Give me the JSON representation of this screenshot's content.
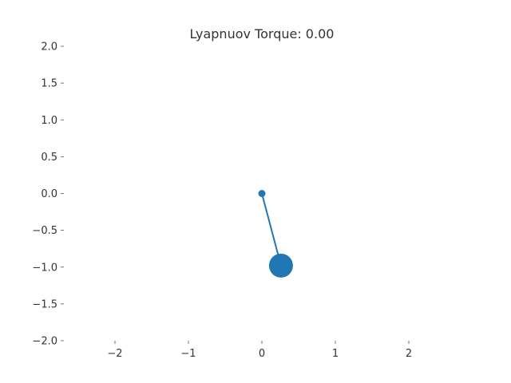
{
  "chart_data": {
    "type": "scatter",
    "title": "Lyapnuov Torque: 0.00",
    "xlabel": "",
    "ylabel": "",
    "xlim": [
      -2.0,
      2.5
    ],
    "ylim": [
      -2.0,
      2.0
    ],
    "x_ticks": [
      {
        "value": -2,
        "label": "−2"
      },
      {
        "value": -1,
        "label": "−1"
      },
      {
        "value": 0,
        "label": "0"
      },
      {
        "value": 1,
        "label": "1"
      },
      {
        "value": 2,
        "label": "2"
      }
    ],
    "y_ticks": [
      {
        "value": 2.0,
        "label": "2.0"
      },
      {
        "value": 1.5,
        "label": "1.5"
      },
      {
        "value": 1.0,
        "label": "1.0"
      },
      {
        "value": 0.5,
        "label": "0.5"
      },
      {
        "value": 0.0,
        "label": "0.0"
      },
      {
        "value": -0.5,
        "label": "−0.5"
      },
      {
        "value": -1.0,
        "label": "−1.0"
      },
      {
        "value": -1.5,
        "label": "−1.5"
      },
      {
        "value": -2.0,
        "label": "−2.0"
      }
    ],
    "grid": false,
    "color": "#1f77b4",
    "pendulum": {
      "pivot": {
        "x": 0.0,
        "y": 0.0
      },
      "bob": {
        "x": 0.26,
        "y": -0.98
      }
    }
  }
}
